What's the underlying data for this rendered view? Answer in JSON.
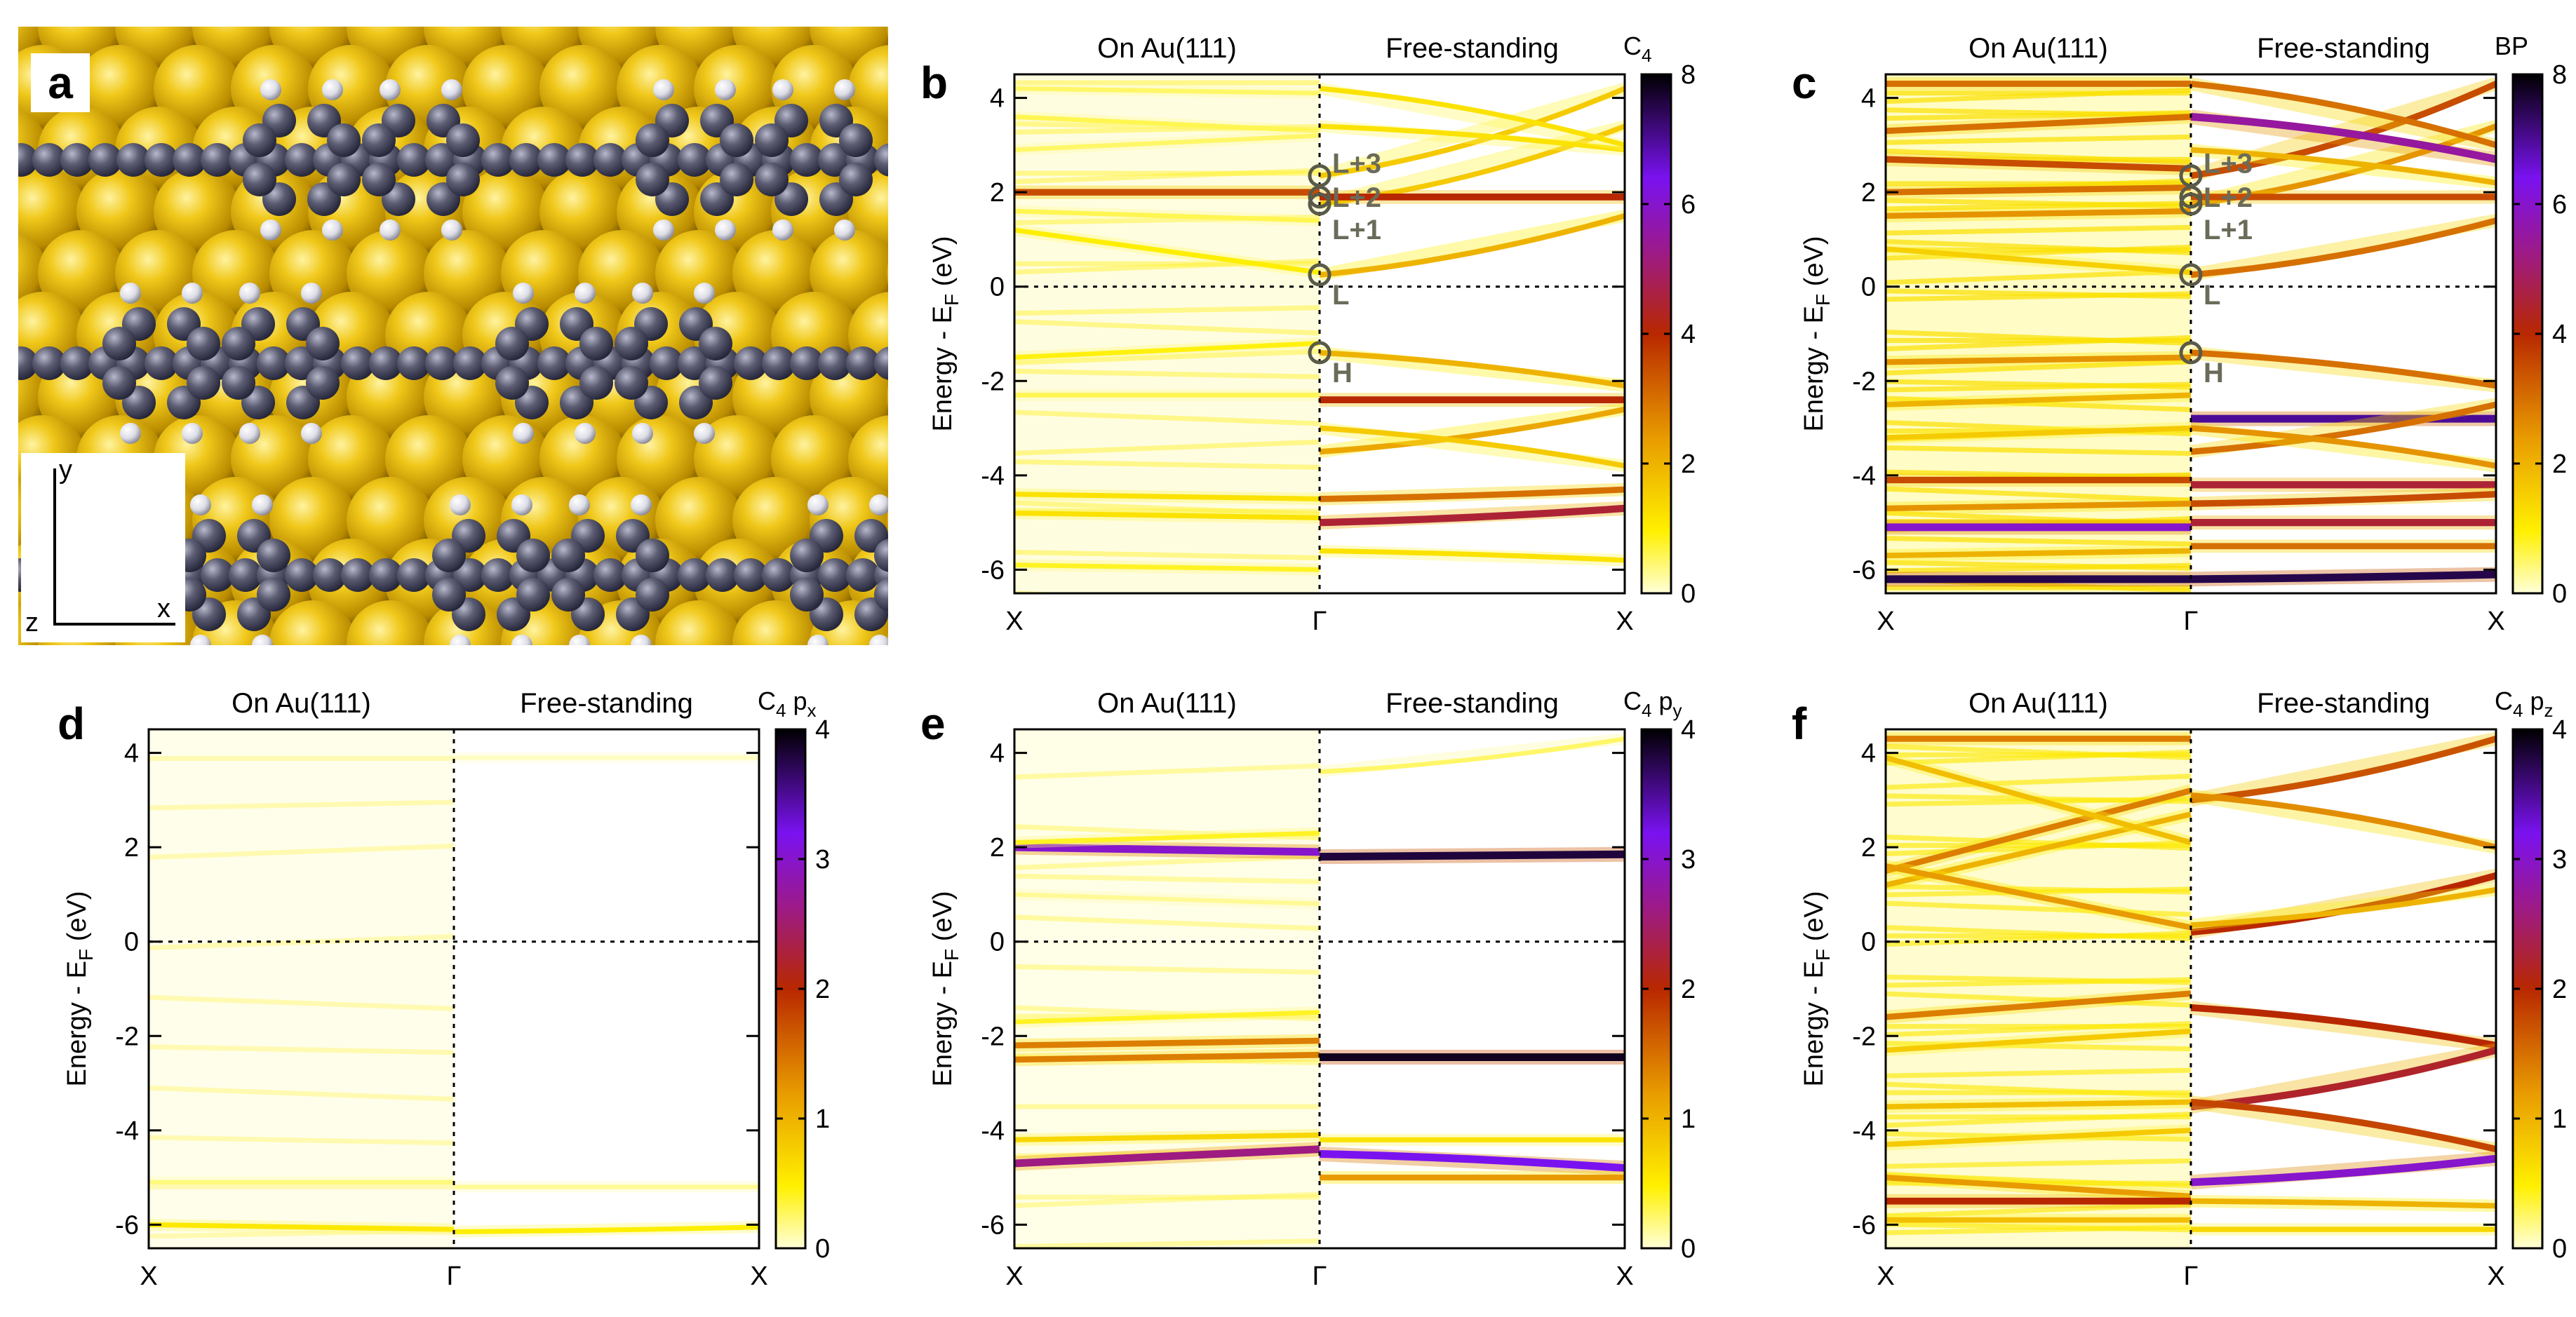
{
  "figure": {
    "panel_a_label": "a",
    "axes_triad": {
      "x": "x",
      "y": "y",
      "z": "z",
      "color_x": "#d62020",
      "color_y": "#d06000",
      "color_z": "#2040d0"
    },
    "colors": {
      "gold": "#e3b712",
      "carbon": "#5c5d72",
      "hydrogen": "#e6e6ee"
    }
  },
  "chart_data": [
    {
      "id": "b",
      "label": "b",
      "type": "heatmap",
      "title_left": "On Au(111)",
      "title_right": "Free-standing",
      "ylabel": "Energy - E",
      "ylabel_sub": "F",
      "ylabel_tail": " (eV)",
      "ylim": [
        -6.5,
        4.5
      ],
      "yticks": [
        "4",
        "2",
        "0",
        "-2",
        "-4",
        "-6"
      ],
      "ytick_values": [
        4,
        2,
        0,
        -2,
        -4,
        -6
      ],
      "xticks": [
        "X",
        "Γ",
        "X"
      ],
      "colorbar": {
        "label": "C",
        "sub": "4",
        "sup_tail": "",
        "min": 0,
        "max": 8,
        "ticks": [
          "0",
          "2",
          "4",
          "6",
          "8"
        ]
      },
      "annotations": [
        {
          "text": "L+3",
          "energy": 2.35
        },
        {
          "text": "L+2",
          "energy": 1.9
        },
        {
          "text": "L+1",
          "energy": 1.75
        },
        {
          "text": "L",
          "energy": 0.25
        },
        {
          "text": "H",
          "energy": -1.4
        }
      ],
      "bands_left": [
        {
          "e0": 4.2,
          "e1": 4.1,
          "w": 0.5
        },
        {
          "e0": 3.6,
          "e1": 3.3,
          "w": 0.6
        },
        {
          "e0": 2.9,
          "e1": 3.2,
          "w": 0.5
        },
        {
          "e0": 2.0,
          "e1": 2.0,
          "w": 3.5
        },
        {
          "e0": 1.6,
          "e1": 1.4,
          "w": 0.6
        },
        {
          "e0": 1.2,
          "e1": 0.3,
          "w": 1.0
        },
        {
          "e0": -1.5,
          "e1": -1.2,
          "w": 0.9
        },
        {
          "e0": -2.3,
          "e1": -2.3,
          "w": 0.6
        },
        {
          "e0": -4.4,
          "e1": -4.5,
          "w": 1.2
        },
        {
          "e0": -4.8,
          "e1": -4.9,
          "w": 1.2
        },
        {
          "e0": -5.9,
          "e1": -6.0,
          "w": 0.8
        }
      ],
      "bands_right": [
        {
          "e0": 0.25,
          "e1": 1.5,
          "w": 2.0
        },
        {
          "e0": 1.75,
          "e1": 3.4,
          "w": 1.6
        },
        {
          "e0": 1.9,
          "e1": 1.9,
          "w": 4.0
        },
        {
          "e0": 2.35,
          "e1": 4.2,
          "w": 1.6
        },
        {
          "e0": 3.4,
          "e1": 2.9,
          "w": 1.2
        },
        {
          "e0": 4.2,
          "e1": 3.0,
          "w": 1.2
        },
        {
          "e0": -1.4,
          "e1": -2.1,
          "w": 2.0
        },
        {
          "e0": -2.4,
          "e1": -2.4,
          "w": 4.0
        },
        {
          "e0": -3.5,
          "e1": -2.6,
          "w": 2.2
        },
        {
          "e0": -3.0,
          "e1": -3.8,
          "w": 1.6
        },
        {
          "e0": -4.5,
          "e1": -4.3,
          "w": 3.0
        },
        {
          "e0": -5.0,
          "e1": -4.7,
          "w": 4.5
        },
        {
          "e0": -5.6,
          "e1": -5.8,
          "w": 1.2
        }
      ],
      "haze": 0.35
    },
    {
      "id": "c",
      "label": "c",
      "type": "heatmap",
      "title_left": "On Au(111)",
      "title_right": "Free-standing",
      "ylabel": "Energy - E",
      "ylabel_sub": "F",
      "ylabel_tail": " (eV)",
      "ylim": [
        -6.5,
        4.5
      ],
      "yticks": [
        "4",
        "2",
        "0",
        "-2",
        "-4",
        "-6"
      ],
      "ytick_values": [
        4,
        2,
        0,
        -2,
        -4,
        -6
      ],
      "xticks": [
        "X",
        "Γ",
        "X"
      ],
      "colorbar": {
        "label": "BP",
        "sub": "",
        "sup_tail": "",
        "min": 0,
        "max": 8,
        "ticks": [
          "0",
          "2",
          "4",
          "6",
          "8"
        ]
      },
      "annotations": [
        {
          "text": "L+3",
          "energy": 2.35
        },
        {
          "text": "L+2",
          "energy": 1.9
        },
        {
          "text": "L+1",
          "energy": 1.75
        },
        {
          "text": "L",
          "energy": 0.25
        },
        {
          "text": "H",
          "energy": -1.4
        }
      ],
      "bands_left": [
        {
          "e0": 4.3,
          "e1": 4.3,
          "w": 3.0
        },
        {
          "e0": 3.3,
          "e1": 3.6,
          "w": 3.0
        },
        {
          "e0": 2.7,
          "e1": 2.5,
          "w": 3.5
        },
        {
          "e0": 2.0,
          "e1": 2.1,
          "w": 3.0
        },
        {
          "e0": 1.5,
          "e1": 1.6,
          "w": 2.5
        },
        {
          "e0": 0.8,
          "e1": 0.3,
          "w": 1.5
        },
        {
          "e0": -1.6,
          "e1": -1.5,
          "w": 2.5
        },
        {
          "e0": -2.5,
          "e1": -2.3,
          "w": 2.0
        },
        {
          "e0": -3.2,
          "e1": -3.0,
          "w": 1.6
        },
        {
          "e0": -4.1,
          "e1": -4.1,
          "w": 3.5
        },
        {
          "e0": -4.7,
          "e1": -4.6,
          "w": 2.5
        },
        {
          "e0": -5.1,
          "e1": -5.1,
          "w": 6.0
        },
        {
          "e0": -5.7,
          "e1": -5.6,
          "w": 2.0
        },
        {
          "e0": -6.2,
          "e1": -6.2,
          "w": 7.5
        }
      ],
      "bands_right": [
        {
          "e0": 0.25,
          "e1": 1.4,
          "w": 3.0
        },
        {
          "e0": 1.75,
          "e1": 3.4,
          "w": 2.5
        },
        {
          "e0": 1.9,
          "e1": 1.9,
          "w": 3.5
        },
        {
          "e0": 2.35,
          "e1": 4.3,
          "w": 3.5
        },
        {
          "e0": 3.6,
          "e1": 2.7,
          "w": 5.5
        },
        {
          "e0": 4.3,
          "e1": 3.0,
          "w": 3.0
        },
        {
          "e0": 2.9,
          "e1": 2.2,
          "w": 2.0
        },
        {
          "e0": -1.4,
          "e1": -2.1,
          "w": 3.0
        },
        {
          "e0": -2.8,
          "e1": -2.8,
          "w": 7.0
        },
        {
          "e0": -3.5,
          "e1": -2.5,
          "w": 3.0
        },
        {
          "e0": -3.0,
          "e1": -3.8,
          "w": 2.5
        },
        {
          "e0": -4.2,
          "e1": -4.2,
          "w": 4.5
        },
        {
          "e0": -4.6,
          "e1": -4.4,
          "w": 3.5
        },
        {
          "e0": -5.0,
          "e1": -5.0,
          "w": 4.5
        },
        {
          "e0": -5.5,
          "e1": -5.5,
          "w": 3.0
        },
        {
          "e0": -6.2,
          "e1": -6.1,
          "w": 7.5
        }
      ],
      "haze": 1.2
    },
    {
      "id": "d",
      "label": "d",
      "type": "heatmap",
      "title_left": "On Au(111)",
      "title_right": "Free-standing",
      "ylabel": "Energy - E",
      "ylabel_sub": "F",
      "ylabel_tail": " (eV)",
      "ylim": [
        -6.5,
        4.5
      ],
      "yticks": [
        "4",
        "2",
        "0",
        "-2",
        "-4",
        "-6"
      ],
      "ytick_values": [
        4,
        2,
        0,
        -2,
        -4,
        -6
      ],
      "xticks": [
        "X",
        "Γ",
        "X"
      ],
      "colorbar": {
        "label": "C",
        "sub": "4",
        "sup_tail": " p",
        "psub": "x",
        "min": 0,
        "max": 4,
        "ticks": [
          "0",
          "1",
          "2",
          "3",
          "4"
        ]
      },
      "annotations": [],
      "bands_left": [
        {
          "e0": -5.1,
          "e1": -5.1,
          "w": 0.2
        },
        {
          "e0": -6.0,
          "e1": -6.1,
          "w": 0.55
        }
      ],
      "bands_right": [
        {
          "e0": -5.2,
          "e1": -5.2,
          "w": 0.15
        },
        {
          "e0": -6.15,
          "e1": -6.05,
          "w": 0.5
        },
        {
          "e0": 3.9,
          "e1": 3.9,
          "w": 0.05
        }
      ],
      "haze": 0.0
    },
    {
      "id": "e",
      "label": "e",
      "type": "heatmap",
      "title_left": "On Au(111)",
      "title_right": "Free-standing",
      "ylabel": "Energy - E",
      "ylabel_sub": "F",
      "ylabel_tail": " (eV)",
      "ylim": [
        -6.5,
        4.5
      ],
      "yticks": [
        "4",
        "2",
        "0",
        "-2",
        "-4",
        "-6"
      ],
      "ytick_values": [
        4,
        2,
        0,
        -2,
        -4,
        -6
      ],
      "xticks": [
        "X",
        "Γ",
        "X"
      ],
      "colorbar": {
        "label": "C",
        "sub": "4",
        "sup_tail": " p",
        "psub": "y",
        "min": 0,
        "max": 4,
        "ticks": [
          "0",
          "1",
          "2",
          "3",
          "4"
        ]
      },
      "annotations": [],
      "bands_left": [
        {
          "e0": 2.0,
          "e1": 1.9,
          "w": 3.0
        },
        {
          "e0": 2.1,
          "e1": 2.3,
          "w": 0.4
        },
        {
          "e0": -2.2,
          "e1": -2.1,
          "w": 1.4
        },
        {
          "e0": -2.5,
          "e1": -2.4,
          "w": 1.4
        },
        {
          "e0": -1.7,
          "e1": -1.5,
          "w": 0.4
        },
        {
          "e0": -4.2,
          "e1": -4.1,
          "w": 0.7
        },
        {
          "e0": -4.7,
          "e1": -4.4,
          "w": 2.6
        },
        {
          "e0": 1.0,
          "e1": 0.8,
          "w": 0.15
        }
      ],
      "bands_right": [
        {
          "e0": 1.8,
          "e1": 1.85,
          "w": 3.8
        },
        {
          "e0": -2.45,
          "e1": -2.45,
          "w": 3.9
        },
        {
          "e0": -4.5,
          "e1": -4.8,
          "w": 3.2
        },
        {
          "e0": -5.0,
          "e1": -5.0,
          "w": 1.2
        },
        {
          "e0": -4.2,
          "e1": -4.2,
          "w": 0.6
        },
        {
          "e0": 3.6,
          "e1": 4.3,
          "w": 0.25
        }
      ],
      "haze": 0.15
    },
    {
      "id": "f",
      "label": "f",
      "type": "heatmap",
      "title_left": "On Au(111)",
      "title_right": "Free-standing",
      "ylabel": "Energy - E",
      "ylabel_sub": "F",
      "ylabel_tail": " (eV)",
      "ylim": [
        -6.5,
        4.5
      ],
      "yticks": [
        "4",
        "2",
        "0",
        "-2",
        "-4",
        "-6"
      ],
      "ytick_values": [
        4,
        2,
        0,
        -2,
        -4,
        -6
      ],
      "xticks": [
        "X",
        "Γ",
        "X"
      ],
      "colorbar": {
        "label": "C",
        "sub": "4",
        "sup_tail": " p",
        "psub": "z",
        "min": 0,
        "max": 4,
        "ticks": [
          "0",
          "1",
          "2",
          "3",
          "4"
        ]
      },
      "annotations": [],
      "bands_left": [
        {
          "e0": 4.3,
          "e1": 4.3,
          "w": 1.4
        },
        {
          "e0": 1.5,
          "e1": 3.2,
          "w": 1.4
        },
        {
          "e0": 1.2,
          "e1": 2.7,
          "w": 1.0
        },
        {
          "e0": 1.6,
          "e1": 0.3,
          "w": 1.2
        },
        {
          "e0": 3.9,
          "e1": 2.1,
          "w": 0.9
        },
        {
          "e0": -1.6,
          "e1": -1.1,
          "w": 1.4
        },
        {
          "e0": -2.3,
          "e1": -1.9,
          "w": 0.8
        },
        {
          "e0": -3.5,
          "e1": -3.4,
          "w": 0.9
        },
        {
          "e0": -4.3,
          "e1": -4.0,
          "w": 0.8
        },
        {
          "e0": -5.0,
          "e1": -5.4,
          "w": 1.2
        },
        {
          "e0": -5.5,
          "e1": -5.5,
          "w": 2.0
        },
        {
          "e0": -5.9,
          "e1": -5.9,
          "w": 0.9
        }
      ],
      "bands_right": [
        {
          "e0": 0.2,
          "e1": 1.4,
          "w": 2.0
        },
        {
          "e0": 0.35,
          "e1": 1.1,
          "w": 1.0
        },
        {
          "e0": 3.0,
          "e1": 4.3,
          "w": 1.7
        },
        {
          "e0": 3.1,
          "e1": 2.0,
          "w": 1.3
        },
        {
          "e0": -1.4,
          "e1": -2.2,
          "w": 2.0
        },
        {
          "e0": -3.5,
          "e1": -2.3,
          "w": 2.2
        },
        {
          "e0": -3.4,
          "e1": -4.4,
          "w": 1.8
        },
        {
          "e0": -5.1,
          "e1": -4.6,
          "w": 3.0
        },
        {
          "e0": -5.5,
          "e1": -5.6,
          "w": 1.0
        },
        {
          "e0": -6.1,
          "e1": -6.1,
          "w": 0.7
        }
      ],
      "haze": 0.9
    }
  ]
}
